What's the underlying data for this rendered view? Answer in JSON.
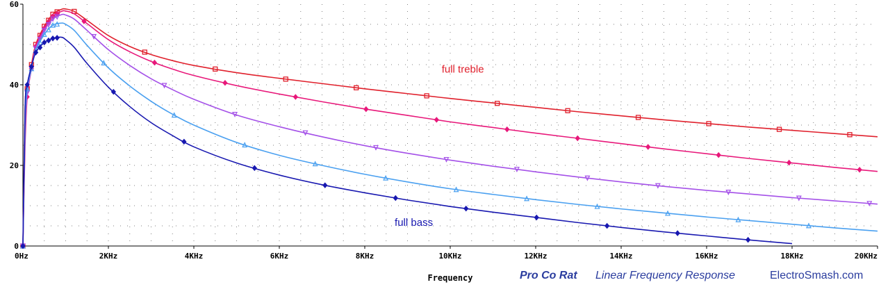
{
  "chart_data": {
    "type": "line",
    "xlabel": "Frequency",
    "ylabel": "",
    "xlim": [
      0,
      20000
    ],
    "ylim": [
      0,
      60
    ],
    "grid": "dotted",
    "x_ticks": [
      {
        "value": 0,
        "label": "0Hz"
      },
      {
        "value": 2000,
        "label": "2KHz"
      },
      {
        "value": 4000,
        "label": "4KHz"
      },
      {
        "value": 6000,
        "label": "6KHz"
      },
      {
        "value": 8000,
        "label": "8KHz"
      },
      {
        "value": 10000,
        "label": "10KHz"
      },
      {
        "value": 12000,
        "label": "12KHz"
      },
      {
        "value": 14000,
        "label": "14KHz"
      },
      {
        "value": 16000,
        "label": "16KHz"
      },
      {
        "value": 18000,
        "label": "18KHz"
      },
      {
        "value": 20000,
        "label": "20KHz"
      }
    ],
    "y_ticks": [
      {
        "value": 0,
        "label": "0"
      },
      {
        "value": 20,
        "label": "20"
      },
      {
        "value": 40,
        "label": "40"
      },
      {
        "value": 60,
        "label": "60"
      }
    ],
    "x": [
      0,
      50,
      100,
      200,
      300,
      500,
      700,
      900,
      1000,
      1200,
      1500,
      2000,
      2500,
      3000,
      3500,
      4000,
      5000,
      6000,
      7000,
      8000,
      9000,
      10000,
      11000,
      12000,
      13000,
      14000,
      15000,
      16000,
      17000,
      18000,
      19000,
      20000
    ],
    "series": [
      {
        "color": "#e0202c",
        "marker": "square",
        "values": [
          0,
          34,
          39,
          45,
          50,
          54.5,
          57.5,
          58.7,
          58.8,
          58.2,
          56,
          52.2,
          49.5,
          47.5,
          46,
          44.8,
          43,
          41.6,
          40.3,
          39,
          37.8,
          36.6,
          35.5,
          34.4,
          33.3,
          32.3,
          31.3,
          30.4,
          29.5,
          28.7,
          27.9,
          27.1
        ]
      },
      {
        "color": "#e8187a",
        "marker": "diamond",
        "values": [
          0,
          25,
          37,
          44,
          49.5,
          54,
          57,
          58.2,
          58.3,
          57.6,
          55.2,
          51.2,
          48.2,
          45.8,
          43.9,
          42.3,
          39.8,
          37.7,
          35.8,
          34,
          32.4,
          30.8,
          29.4,
          28,
          26.7,
          25.4,
          24.1,
          22.9,
          21.7,
          20.6,
          19.5,
          18.5
        ]
      },
      {
        "color": "#a450e8",
        "marker": "triangle-down",
        "values": [
          0,
          28,
          38,
          44,
          49,
          53.5,
          56.3,
          57.4,
          57.3,
          56.3,
          53.5,
          48.7,
          44.8,
          41.5,
          38.8,
          36.4,
          32.5,
          29.6,
          27.1,
          24.9,
          23,
          21.3,
          19.8,
          18.4,
          17.1,
          15.9,
          14.8,
          13.8,
          12.9,
          12,
          11.2,
          10.4
        ]
      },
      {
        "color": "#4aa0f0",
        "marker": "triangle-up",
        "values": [
          0,
          30,
          39,
          44,
          48.5,
          52.5,
          54.8,
          55.3,
          55,
          53.5,
          49.8,
          44.2,
          39.7,
          35.9,
          32.7,
          30,
          25.7,
          22.5,
          20,
          17.8,
          15.9,
          14.2,
          12.8,
          11.5,
          10.3,
          9.2,
          8.2,
          7.2,
          6.3,
          5.4,
          4.5,
          3.7
        ]
      },
      {
        "color": "#1818b0",
        "marker": "diamond",
        "values": [
          0,
          34,
          40,
          44.5,
          48,
          50.5,
          51.5,
          51.8,
          51.2,
          49.3,
          45.3,
          39.4,
          34.6,
          30.6,
          27.4,
          24.6,
          20.6,
          17.6,
          15.2,
          13.2,
          11.4,
          9.8,
          8.4,
          7.1,
          5.8,
          4.6,
          3.5,
          2.5,
          1.5,
          0.6,
          null,
          null
        ]
      }
    ],
    "annotations": [
      {
        "text": "full treble",
        "x": 9800,
        "y": 43,
        "color": "#e0202c"
      },
      {
        "text": "full bass",
        "x": 8700,
        "y": 5,
        "color": "#1818b0"
      }
    ]
  },
  "footer": {
    "brand": "Pro Co Rat",
    "subtitle": "Linear Frequency Response",
    "site": "ElectroSmash.com"
  }
}
